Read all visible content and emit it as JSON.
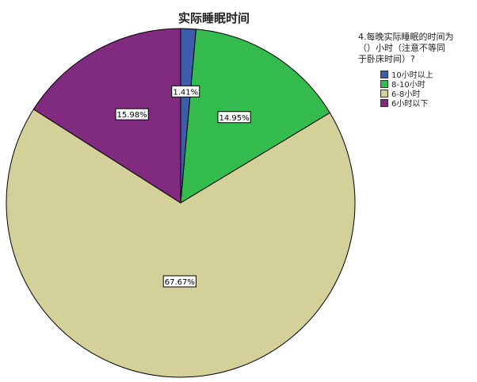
{
  "chart_data": {
    "type": "pie",
    "title": "实际睡眠时间",
    "legend_title": "4.每晚实际睡眠的时间为\n（）小时（注意不等同\n于卧床时间）?",
    "legend_position": "top-right",
    "categories": [
      "10小时以上",
      "8-10小时",
      "6-8小时",
      "6小时以下"
    ],
    "values": [
      1.41,
      14.95,
      67.67,
      15.98
    ],
    "labels": [
      "1.41%",
      "14.95%",
      "67.67%",
      "15.98%"
    ],
    "colors": [
      "#3d5da8",
      "#33bb4e",
      "#d4d09a",
      "#802b7f"
    ]
  }
}
